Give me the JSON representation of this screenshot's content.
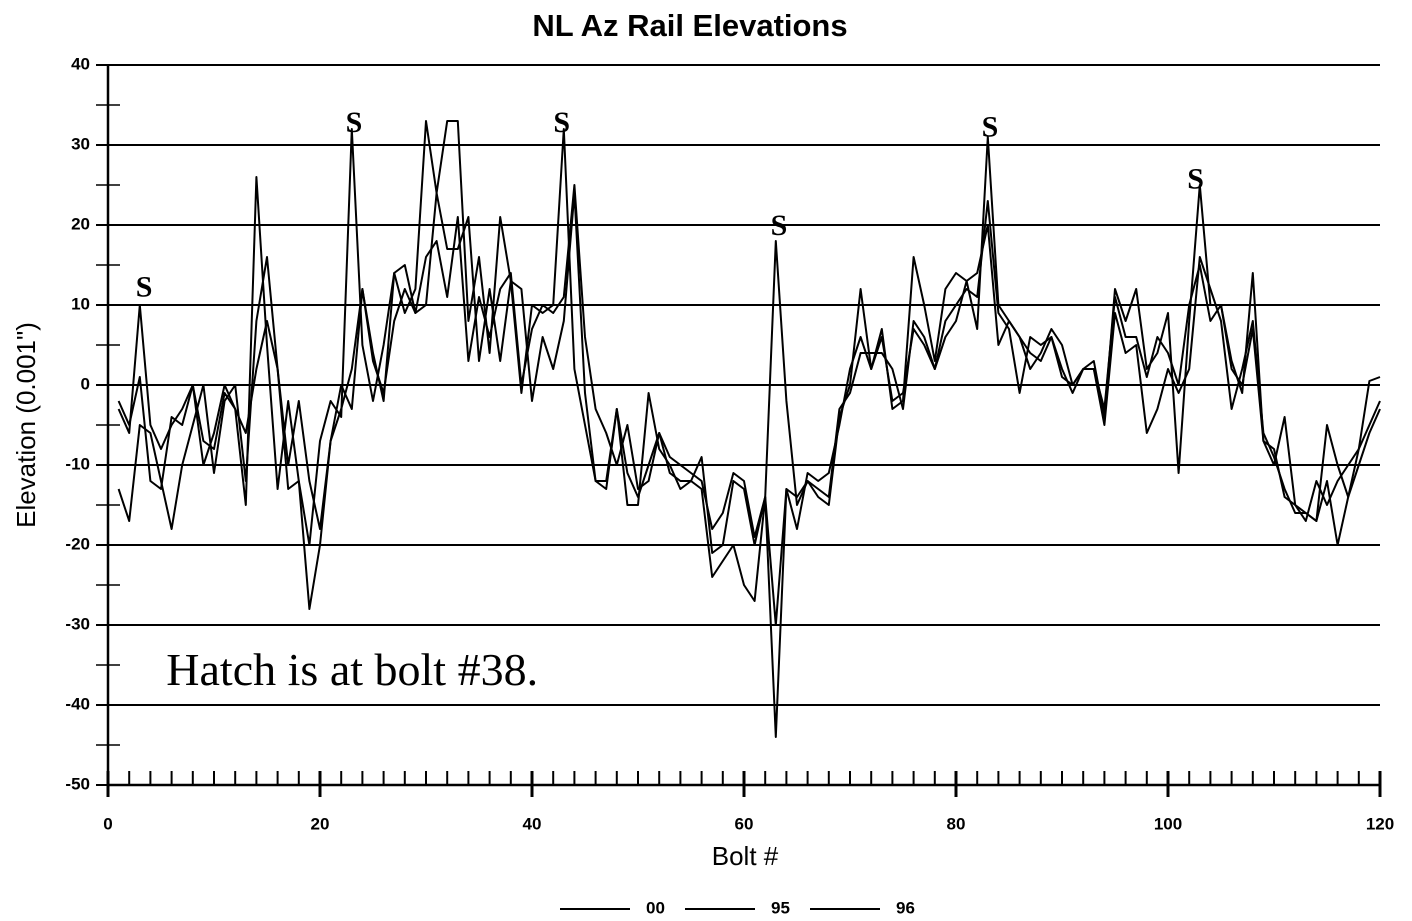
{
  "chart_data": {
    "type": "line",
    "title": "NL Az Rail Elevations",
    "xlabel": "Bolt #",
    "ylabel": "Elevation (0.001\")",
    "x": [
      1,
      2,
      3,
      4,
      5,
      6,
      7,
      8,
      9,
      10,
      11,
      12,
      13,
      14,
      15,
      16,
      17,
      18,
      19,
      20,
      21,
      22,
      23,
      24,
      25,
      26,
      27,
      28,
      29,
      30,
      31,
      32,
      33,
      34,
      35,
      36,
      37,
      38,
      39,
      40,
      41,
      42,
      43,
      44,
      45,
      46,
      47,
      48,
      49,
      50,
      51,
      52,
      53,
      54,
      55,
      56,
      57,
      58,
      59,
      60,
      61,
      62,
      63,
      64,
      65,
      66,
      67,
      68,
      69,
      70,
      71,
      72,
      73,
      74,
      75,
      76,
      77,
      78,
      79,
      80,
      81,
      82,
      83,
      84,
      85,
      86,
      87,
      88,
      89,
      90,
      91,
      92,
      93,
      94,
      95,
      96,
      97,
      98,
      99,
      100,
      101,
      102,
      103,
      104,
      105,
      106,
      107,
      108,
      109,
      110,
      111,
      112,
      113,
      114,
      115,
      116,
      117,
      118,
      119,
      120
    ],
    "series": [
      {
        "name": "00",
        "color": "#000000",
        "values": [
          -3,
          -6,
          10,
          -5,
          -8,
          -5,
          -3,
          0,
          -10,
          -6,
          0,
          -3,
          -15,
          26,
          5,
          -13,
          -2,
          -12,
          -20,
          -7,
          -2,
          -4,
          32,
          5,
          -2,
          5,
          14,
          9,
          12,
          33,
          24,
          33,
          33,
          8,
          16,
          4,
          21,
          13,
          -1,
          10,
          9,
          10,
          32,
          2,
          -5,
          -12,
          -12,
          -3,
          -15,
          -15,
          -1,
          -8,
          -10,
          -13,
          -12,
          -9,
          -21,
          -20,
          -12,
          -13,
          -20,
          -14,
          18,
          -2,
          -15,
          -12,
          -14,
          -15,
          -4,
          0,
          12,
          2,
          7,
          -3,
          -2,
          16,
          10,
          3,
          12,
          14,
          13,
          7,
          31,
          10,
          8,
          6,
          4,
          3,
          6,
          2,
          -1,
          2,
          3,
          -4,
          12,
          8,
          12,
          2,
          4,
          9,
          -11,
          8,
          25,
          10,
          10,
          3,
          -1,
          14,
          -7,
          -10,
          -4,
          -15,
          -16,
          -17,
          -5,
          -10,
          -14,
          -8,
          0.5,
          1
        ]
      },
      {
        "name": "95",
        "color": "#000000",
        "values": [
          -13,
          -17,
          -5,
          -6,
          -12,
          -18,
          -10,
          -5,
          0,
          -11,
          -2,
          0,
          -12,
          8,
          16,
          2,
          -13,
          -12,
          -28,
          -20,
          -7,
          0,
          -3,
          12,
          3,
          -1,
          8,
          12,
          9,
          10,
          24,
          17,
          17,
          21,
          3,
          12,
          3,
          13,
          12,
          -2,
          6,
          2,
          8,
          24,
          -1,
          -12,
          -13,
          -3,
          -11,
          -14,
          -10,
          -6,
          -11,
          -12,
          -12,
          -13,
          -24,
          -22,
          -20,
          -25,
          -27,
          -14,
          -44,
          -13,
          -14,
          -12,
          -13,
          -14,
          -3,
          -1,
          4,
          4,
          4,
          2,
          -3,
          8,
          6,
          2,
          6,
          8,
          13,
          14,
          20,
          5,
          8,
          6,
          2,
          4,
          7,
          5,
          0,
          2,
          2,
          -5,
          9,
          4,
          5,
          -6,
          -3,
          2,
          -1,
          2,
          16,
          12,
          8,
          -3,
          2,
          8,
          -6,
          -9,
          -13,
          -16,
          -16,
          -17,
          -12,
          -20,
          -14,
          -10,
          -6,
          -3
        ]
      },
      {
        "name": "96",
        "color": "#000000",
        "values": [
          -2,
          -5,
          1,
          -12,
          -13,
          -4,
          -5,
          0,
          -7,
          -8,
          -1,
          -3,
          -6,
          2,
          8,
          2,
          -10,
          -2,
          -12,
          -18,
          -7,
          -3,
          2,
          12,
          4,
          -2,
          14,
          15,
          9,
          16,
          18,
          11,
          21,
          3,
          11,
          6,
          12,
          14,
          0,
          7,
          10,
          9,
          11,
          25,
          6,
          -3,
          -6,
          -10,
          -5,
          -13,
          -12,
          -6,
          -9,
          -10,
          -11,
          -12,
          -18,
          -16,
          -11,
          -12,
          -19,
          -14,
          -30,
          -13,
          -18,
          -11,
          -12,
          -11,
          -5,
          2,
          6,
          2,
          6,
          -2,
          -1,
          7,
          5,
          2,
          8,
          10,
          12,
          11,
          23,
          9,
          7,
          -1,
          6,
          5,
          6,
          1,
          0,
          2,
          2,
          -3,
          11,
          6,
          6,
          1,
          6,
          4,
          0,
          10,
          15,
          8,
          10,
          2,
          0,
          7,
          -7,
          -8,
          -14,
          -15,
          -17,
          -12,
          -15,
          -12,
          -10,
          -8,
          -5,
          -2
        ]
      }
    ],
    "xlim": [
      0,
      120
    ],
    "xticks": [
      0,
      20,
      40,
      60,
      80,
      100,
      120
    ],
    "xminorticks": [
      2,
      4,
      6,
      8,
      10,
      12,
      14,
      16,
      18,
      22,
      24,
      26,
      28,
      30,
      32,
      34,
      36,
      38,
      42,
      44,
      46,
      48,
      50,
      52,
      54,
      56,
      58,
      62,
      64,
      66,
      68,
      70,
      72,
      74,
      76,
      78,
      82,
      84,
      86,
      88,
      90,
      92,
      94,
      96,
      98,
      102,
      104,
      106,
      108,
      110,
      112,
      114,
      116,
      118
    ],
    "ylim": [
      -50,
      40
    ],
    "yticks": [
      -50,
      -40,
      -30,
      -20,
      -10,
      0,
      10,
      20,
      30,
      40
    ],
    "yminorticks": [
      -45,
      -35,
      -25,
      -15,
      -5,
      5,
      15,
      25,
      35
    ],
    "grid": true,
    "annotations": [
      {
        "text": "S",
        "x": 3.4,
        "y": 11.9
      },
      {
        "text": "S",
        "x": 23.2,
        "y": 32.5
      },
      {
        "text": "S",
        "x": 42.8,
        "y": 32.5
      },
      {
        "text": "S",
        "x": 63.3,
        "y": 19.6
      },
      {
        "text": "S",
        "x": 83.2,
        "y": 31.9
      },
      {
        "text": "S",
        "x": 102.6,
        "y": 25.4
      }
    ],
    "note": {
      "text": "Hatch is at bolt #38.",
      "x": 5.5,
      "y": -36.2
    },
    "legend": "bottom"
  }
}
